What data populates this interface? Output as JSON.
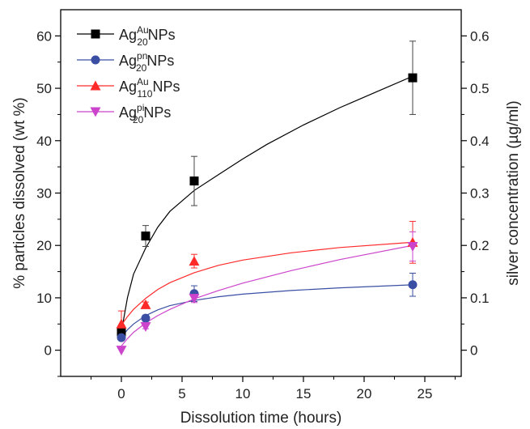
{
  "chart_data": {
    "type": "scatter",
    "title": "",
    "xlabel": "Dissolution time (hours)",
    "ylabel": "% particles dissolved (wt %)",
    "y2label": "silver concentration (µg/ml)",
    "xlim": [
      -5,
      28
    ],
    "ylim": [
      -5,
      65
    ],
    "y2lim": [
      -0.05,
      0.65
    ],
    "xticks": [
      0,
      5,
      10,
      15,
      20,
      25
    ],
    "yticks": [
      0,
      10,
      20,
      30,
      40,
      50,
      60
    ],
    "y2ticks": [
      "0",
      "0.1",
      "0.2",
      "0.3",
      "0.4",
      "0.5",
      "0.6"
    ],
    "y2tick_values": [
      0,
      0.1,
      0.2,
      0.3,
      0.4,
      0.5,
      0.6
    ],
    "grid": false,
    "legend_position": "top-left",
    "series": [
      {
        "name": "Ag^Au_20NPs",
        "label_parts": {
          "base": "Ag",
          "sup": "Au",
          "sub": "20",
          "tail": "NPs"
        },
        "color": "#000000",
        "marker": "square",
        "x": [
          0,
          2,
          6,
          24
        ],
        "y": [
          3.5,
          21.8,
          32.3,
          52
        ],
        "yerr": [
          0.8,
          2.0,
          4.7,
          7.0
        ],
        "fit": [
          [
            0,
            3.5
          ],
          [
            0.5,
            10
          ],
          [
            1,
            14.5
          ],
          [
            2,
            19.5
          ],
          [
            3,
            23.5
          ],
          [
            4,
            26.5
          ],
          [
            6,
            30.5
          ],
          [
            8,
            33.5
          ],
          [
            10,
            36.5
          ],
          [
            12,
            39.3
          ],
          [
            15,
            43
          ],
          [
            18,
            46.3
          ],
          [
            21,
            49.3
          ],
          [
            24,
            52.3
          ]
        ]
      },
      {
        "name": "Ag^pn_20NPs",
        "label_parts": {
          "base": "Ag",
          "sup": "pn",
          "sub": "20",
          "tail": "NPs"
        },
        "color": "#3a4fa3",
        "marker": "circle",
        "x": [
          0,
          2,
          6,
          24
        ],
        "y": [
          2.4,
          6.1,
          10.8,
          12.5
        ],
        "yerr": [
          0.5,
          0.6,
          1.5,
          2.2
        ],
        "fit": [
          [
            0,
            2.4
          ],
          [
            0.5,
            3.9
          ],
          [
            1,
            5.0
          ],
          [
            2,
            6.6
          ],
          [
            3,
            7.7
          ],
          [
            4,
            8.5
          ],
          [
            6,
            9.5
          ],
          [
            8,
            10.2
          ],
          [
            10,
            10.7
          ],
          [
            14,
            11.4
          ],
          [
            18,
            11.9
          ],
          [
            24,
            12.5
          ]
        ]
      },
      {
        "name": "Ag^Au_110NPs",
        "label_parts": {
          "base": "Ag",
          "sup": "Au",
          "sub": "110",
          "tail": "NPs"
        },
        "color": "#ff2a2a",
        "marker": "triangle-up",
        "x": [
          0,
          2,
          6,
          24
        ],
        "y": [
          5.0,
          8.7,
          17.0,
          20.6
        ],
        "yerr": [
          2.5,
          0.5,
          1.3,
          4.0
        ],
        "fit": [
          [
            0,
            4.8
          ],
          [
            0.5,
            6.4
          ],
          [
            1,
            7.8
          ],
          [
            2,
            9.9
          ],
          [
            3,
            11.6
          ],
          [
            4,
            12.9
          ],
          [
            6,
            14.8
          ],
          [
            8,
            16.2
          ],
          [
            10,
            17.2
          ],
          [
            14,
            18.6
          ],
          [
            18,
            19.6
          ],
          [
            24,
            20.6
          ]
        ]
      },
      {
        "name": "Ag^pi_20NPs",
        "label_parts": {
          "base": "Ag",
          "sup": "pi",
          "sub": "20",
          "tail": "NPs"
        },
        "color": "#cc44cc",
        "marker": "triangle-down",
        "x": [
          0,
          2,
          6,
          24
        ],
        "y": [
          0,
          4.5,
          9.9,
          19.8
        ],
        "yerr": [
          0,
          0.4,
          0.8,
          2.8
        ],
        "fit": [
          [
            0,
            0.8
          ],
          [
            0.5,
            2.2
          ],
          [
            1,
            3.4
          ],
          [
            2,
            5.2
          ],
          [
            3,
            6.6
          ],
          [
            4,
            7.8
          ],
          [
            6,
            9.8
          ],
          [
            8,
            11.4
          ],
          [
            10,
            12.8
          ],
          [
            14,
            15.2
          ],
          [
            18,
            17.3
          ],
          [
            24,
            20.0
          ]
        ]
      }
    ]
  }
}
